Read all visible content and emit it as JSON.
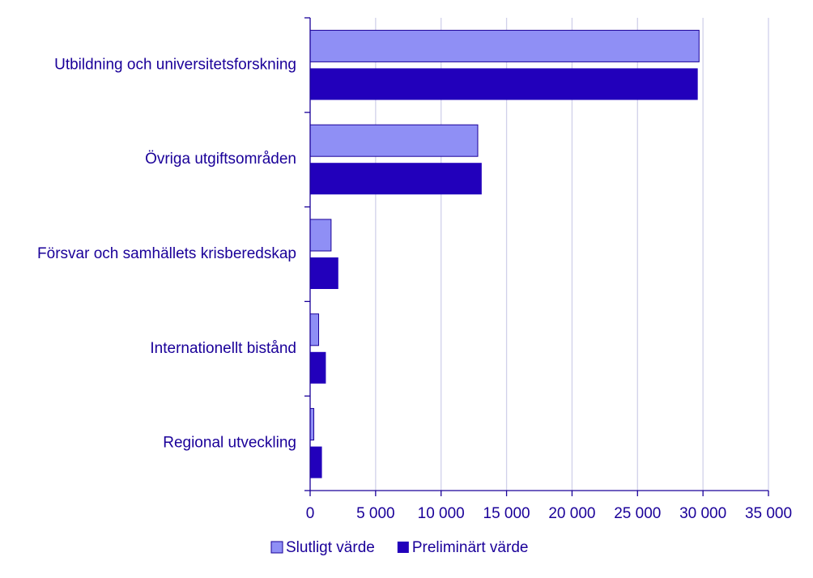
{
  "chart_data": {
    "type": "bar",
    "orientation": "horizontal",
    "categories": [
      "Utbildning och universitetsforskning",
      "Övriga utgiftsområden",
      "Försvar och samhällets krisberedskap",
      "Internationellt bistånd",
      "Regional utveckling"
    ],
    "series": [
      {
        "name": "Slutligt värde",
        "color": "#8f8ff5",
        "values": [
          29700,
          12800,
          1600,
          650,
          280
        ]
      },
      {
        "name": "Preliminärt värde",
        "color": "#2200bb",
        "values": [
          29600,
          13100,
          2150,
          1200,
          900
        ]
      }
    ],
    "xlim": [
      0,
      35000
    ],
    "xticks": [
      0,
      5000,
      10000,
      15000,
      20000,
      25000,
      30000,
      35000
    ],
    "xtick_labels": [
      "0",
      "5 000",
      "10 000",
      "15 000",
      "20 000",
      "25 000",
      "30 000",
      "35 000"
    ],
    "grid": "vertical",
    "legend_position": "bottom",
    "text_color": "#1a0099",
    "axis_color": "#1a0099",
    "grid_color": "#d0d0ea"
  }
}
